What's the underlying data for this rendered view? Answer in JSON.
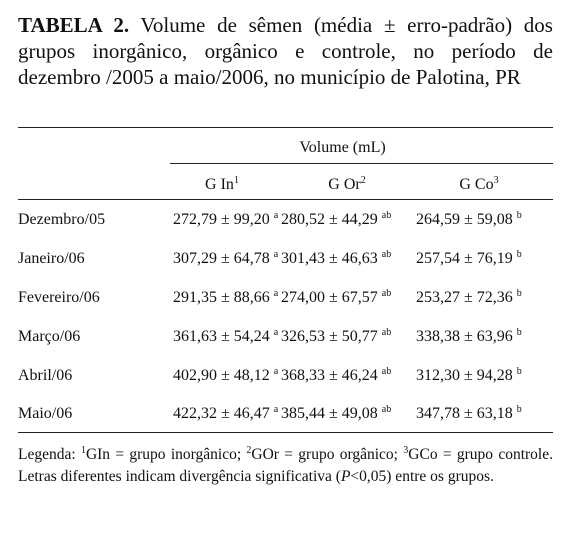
{
  "title": {
    "label": "TABELA 2.",
    "text": "Volume de sêmen (média ± erro-padrão) dos grupos inorgânico, orgânico e controle, no período de dezembro /2005 a maio/2006, no município de Palotina, PR"
  },
  "table": {
    "group_header": "Volume (mL)",
    "columns": [
      {
        "name": "G In",
        "sup": "1"
      },
      {
        "name": "G Or",
        "sup": "2"
      },
      {
        "name": "G Co",
        "sup": "3"
      }
    ],
    "rows": [
      {
        "label": "Dezembro/05",
        "cells": [
          {
            "value": "272,79 ± 99,20",
            "letter": "a"
          },
          {
            "value": "280,52 ± 44,29",
            "letter": "ab"
          },
          {
            "value": "264,59 ± 59,08",
            "letter": "b"
          }
        ]
      },
      {
        "label": "Janeiro/06",
        "cells": [
          {
            "value": "307,29 ± 64,78",
            "letter": "a"
          },
          {
            "value": "301,43 ± 46,63",
            "letter": "ab"
          },
          {
            "value": "257,54 ± 76,19",
            "letter": "b"
          }
        ]
      },
      {
        "label": "Fevereiro/06",
        "cells": [
          {
            "value": "291,35 ± 88,66",
            "letter": "a"
          },
          {
            "value": "274,00 ± 67,57",
            "letter": "ab"
          },
          {
            "value": "253,27 ± 72,36",
            "letter": "b"
          }
        ]
      },
      {
        "label": "Março/06",
        "cells": [
          {
            "value": "361,63 ± 54,24",
            "letter": "a"
          },
          {
            "value": "326,53 ± 50,77",
            "letter": "ab"
          },
          {
            "value": "338,38 ± 63,96",
            "letter": "b"
          }
        ]
      },
      {
        "label": "Abril/06",
        "cells": [
          {
            "value": "402,90 ± 48,12",
            "letter": "a"
          },
          {
            "value": "368,33 ± 46,24",
            "letter": "ab"
          },
          {
            "value": "312,30 ± 94,28",
            "letter": "b"
          }
        ]
      },
      {
        "label": "Maio/06",
        "cells": [
          {
            "value": "422,32 ± 46,47",
            "letter": "a"
          },
          {
            "value": "385,44 ± 49,08",
            "letter": "ab"
          },
          {
            "value": "347,78 ± 63,18",
            "letter": "b"
          }
        ]
      }
    ]
  },
  "legend": [
    {
      "text": "Legenda: "
    },
    {
      "text": "1",
      "sup": true
    },
    {
      "text": "GIn = grupo inorgânico; "
    },
    {
      "text": "2",
      "sup": true
    },
    {
      "text": "GOr = grupo orgânico; "
    },
    {
      "text": "3",
      "sup": true
    },
    {
      "text": "GCo = grupo controle. Letras diferentes indicam divergência significativa ("
    },
    {
      "text": "P",
      "italic": true
    },
    {
      "text": "<0,05) entre os grupos."
    }
  ]
}
